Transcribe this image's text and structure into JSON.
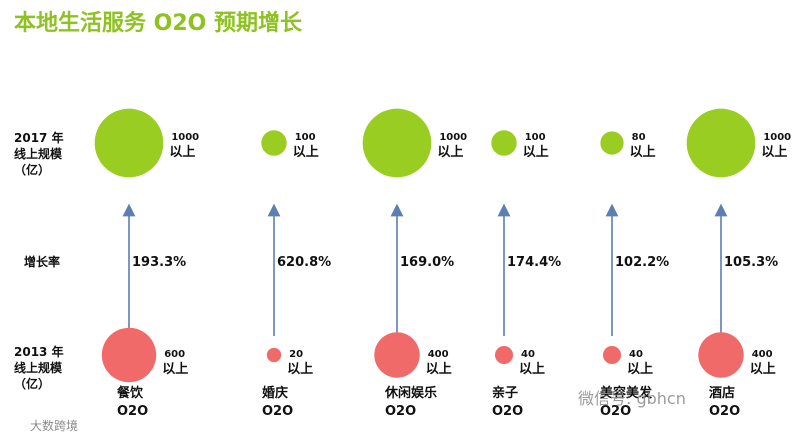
{
  "title": "本地生活服务 O2O 预期增长",
  "colors": {
    "title": "#8dc21f",
    "bubble_2017": "#9acd22",
    "bubble_2013": "#f06a6a",
    "arrow": "#5b7fb0"
  },
  "row_labels": {
    "y2017": [
      "2017 年",
      "线上规模",
      "（亿）"
    ],
    "growth": "增长率",
    "y2013": [
      "2013 年",
      "线上规模",
      "（亿）"
    ]
  },
  "chart_data": {
    "type": "bubble",
    "title": "本地生活服务 O2O 预期增长",
    "categories": [
      [
        "餐饮",
        "O2O"
      ],
      [
        "婚庆",
        "O2O"
      ],
      [
        "休闲娱乐",
        "O2O"
      ],
      [
        "亲子",
        "O2O"
      ],
      [
        "美容美发",
        "O2O"
      ],
      [
        "酒店",
        "O2O"
      ]
    ],
    "series": [
      {
        "name": "2017 年线上规模（亿）",
        "values": [
          1000,
          100,
          1000,
          100,
          80,
          1000
        ],
        "labels": [
          "1000",
          "100",
          "1000",
          "100",
          "80",
          "1000"
        ],
        "suffix": "以上"
      },
      {
        "name": "2013 年线上规模（亿）",
        "values": [
          600,
          20,
          400,
          40,
          40,
          400
        ],
        "labels": [
          "600",
          "20",
          "400",
          "40",
          "40",
          "400"
        ],
        "suffix": "以上"
      }
    ],
    "growth_rate": [
      "193.3%",
      "620.8%",
      "169.0%",
      "174.4%",
      "102.2%",
      "105.3%"
    ]
  },
  "watermarks": {
    "bottom_left": "大数跨境",
    "bottom_right": "微信号: gbhcn"
  }
}
